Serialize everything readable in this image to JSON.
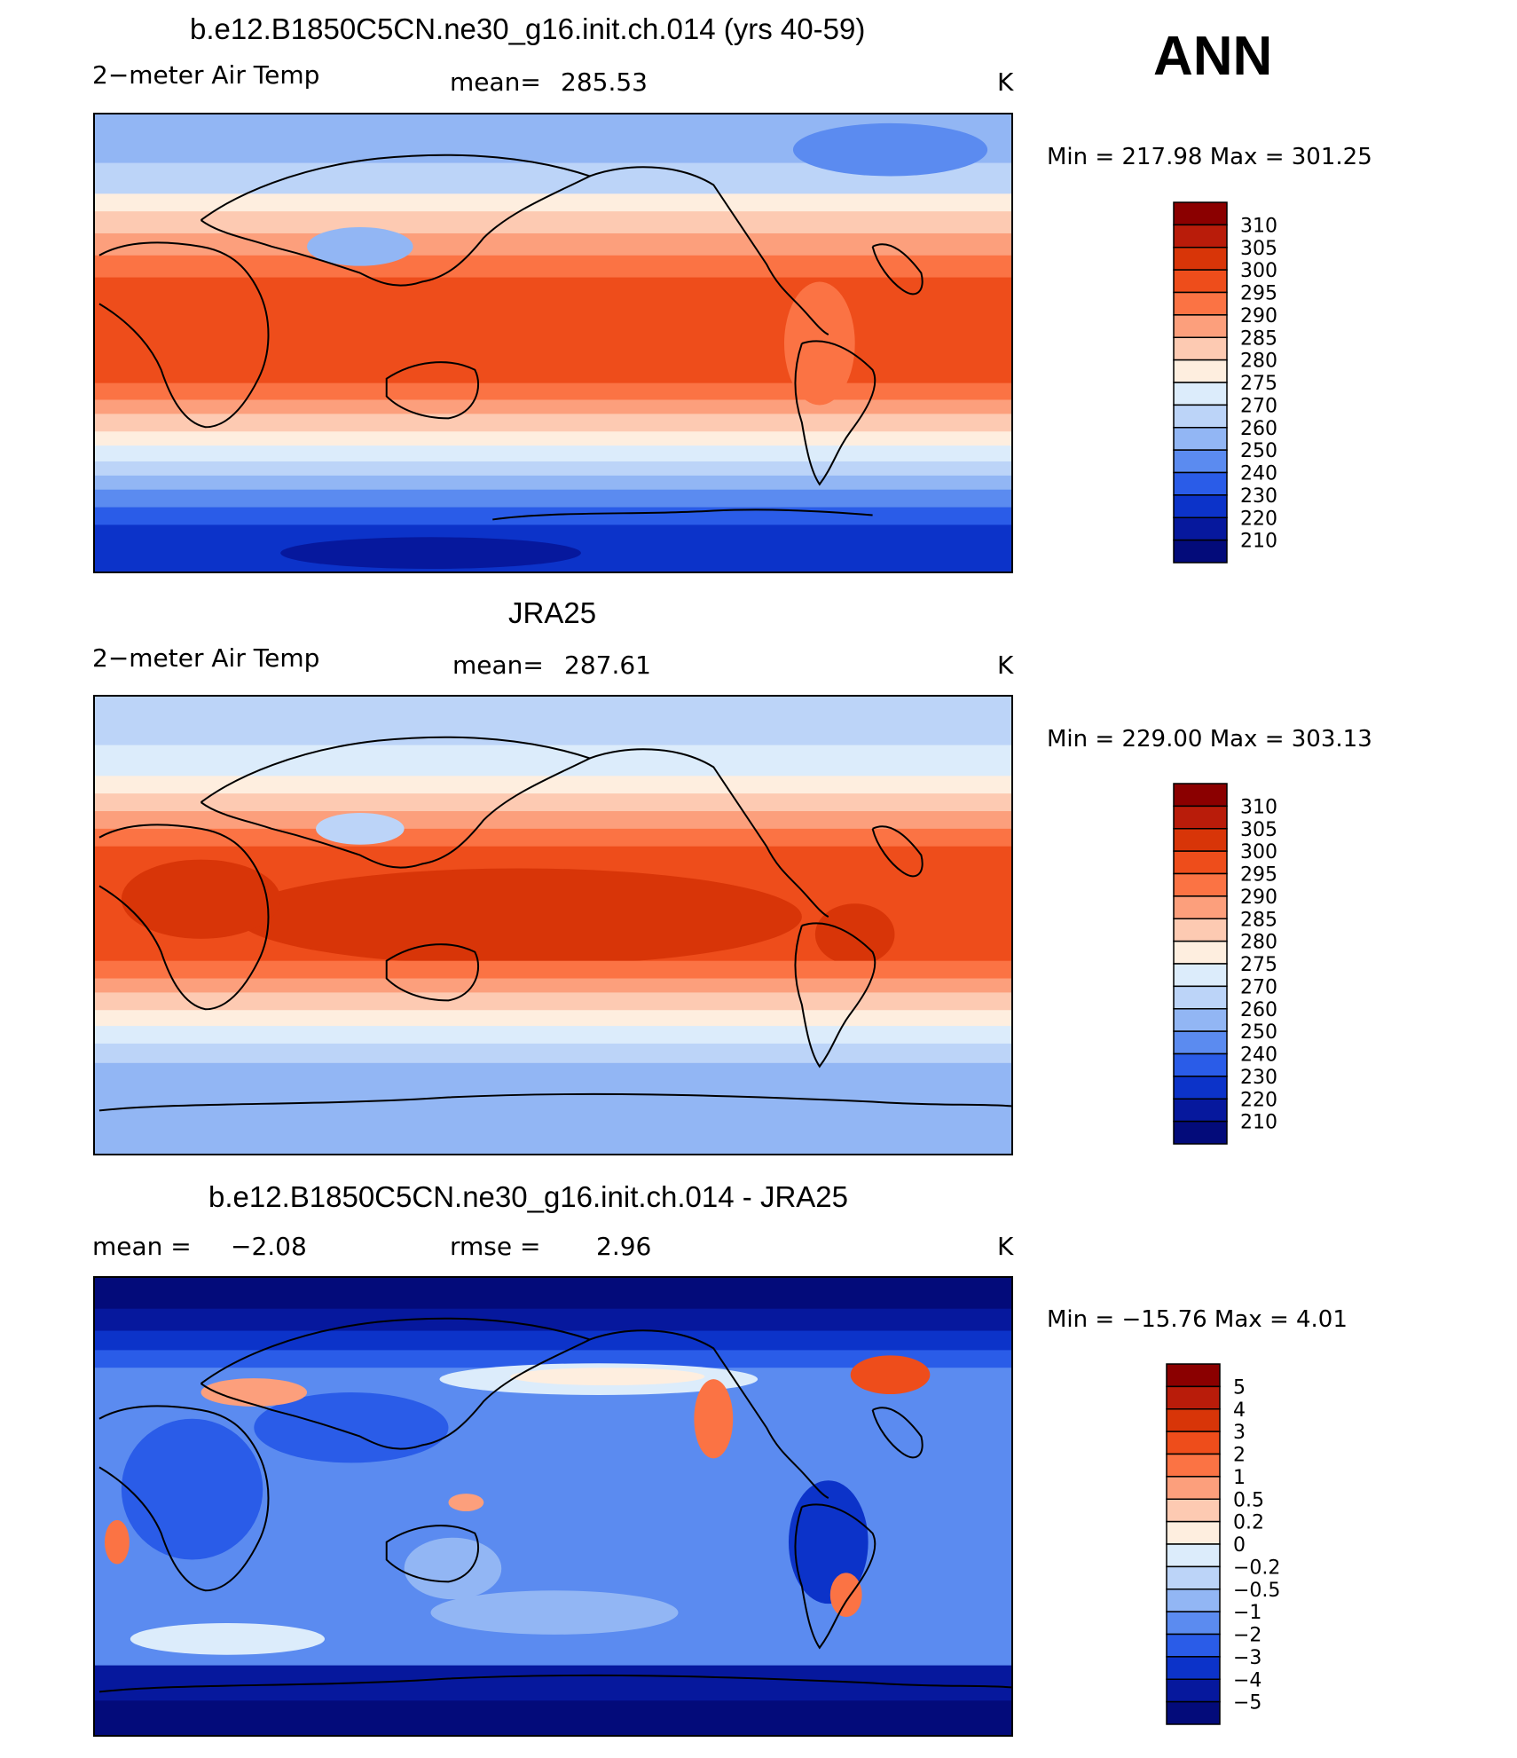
{
  "season": "ANN",
  "chart_data": [
    {
      "type": "heatmap",
      "title": "b.e12.B1850C5CN.ne30_g16.init.ch.014 (yrs 40-59)",
      "variable": "2−meter Air Temp",
      "stat_label": "mean=",
      "stat_value": "285.53",
      "units": "K",
      "min_max_text": "Min  =  217.98  Max  =  301.25",
      "min": 217.98,
      "max": 301.25,
      "colorbar_levels": [
        "310",
        "305",
        "300",
        "295",
        "290",
        "285",
        "280",
        "275",
        "270",
        "260",
        "250",
        "240",
        "230",
        "220",
        "210"
      ],
      "colors": [
        "#8b0000",
        "#b91c0a",
        "#d83508",
        "#ee4d1b",
        "#fb7344",
        "#fc9f7c",
        "#fdcab2",
        "#feeedf",
        "#dcecfb",
        "#bcd4f8",
        "#92b6f4",
        "#5b8bf0",
        "#2a5ce8",
        "#0c33c9",
        "#06189d",
        "#030b7a"
      ]
    },
    {
      "type": "heatmap",
      "title": "JRA25",
      "variable": "2−meter Air Temp",
      "stat_label": "mean=",
      "stat_value": "287.61",
      "units": "K",
      "min_max_text": "Min  =  229.00  Max  =  303.13",
      "min": 229.0,
      "max": 303.13,
      "colorbar_levels": [
        "310",
        "305",
        "300",
        "295",
        "290",
        "285",
        "280",
        "275",
        "270",
        "260",
        "250",
        "240",
        "230",
        "220",
        "210"
      ],
      "colors": [
        "#8b0000",
        "#b91c0a",
        "#d83508",
        "#ee4d1b",
        "#fb7344",
        "#fc9f7c",
        "#fdcab2",
        "#feeedf",
        "#dcecfb",
        "#bcd4f8",
        "#92b6f4",
        "#5b8bf0",
        "#2a5ce8",
        "#0c33c9",
        "#06189d",
        "#030b7a"
      ]
    },
    {
      "type": "heatmap",
      "title": "b.e12.B1850C5CN.ne30_g16.init.ch.014 - JRA25",
      "stat1_label": "mean  =",
      "stat1_value": "−2.08",
      "stat2_label": "rmse  =",
      "stat2_value": "2.96",
      "units": "K",
      "min_max_text": "Min  =  −15.76  Max  =     4.01",
      "min": -15.76,
      "max": 4.01,
      "colorbar_levels": [
        "5",
        "4",
        "3",
        "2",
        "1",
        "0.5",
        "0.2",
        "0",
        "−0.2",
        "−0.5",
        "−1",
        "−2",
        "−3",
        "−4",
        "−5"
      ],
      "colors": [
        "#8b0000",
        "#b91c0a",
        "#d83508",
        "#ee4d1b",
        "#fb7344",
        "#fc9f7c",
        "#fdcab2",
        "#feeedf",
        "#dcecfb",
        "#bcd4f8",
        "#92b6f4",
        "#5b8bf0",
        "#2a5ce8",
        "#0c33c9",
        "#06189d",
        "#030b7a"
      ]
    }
  ]
}
